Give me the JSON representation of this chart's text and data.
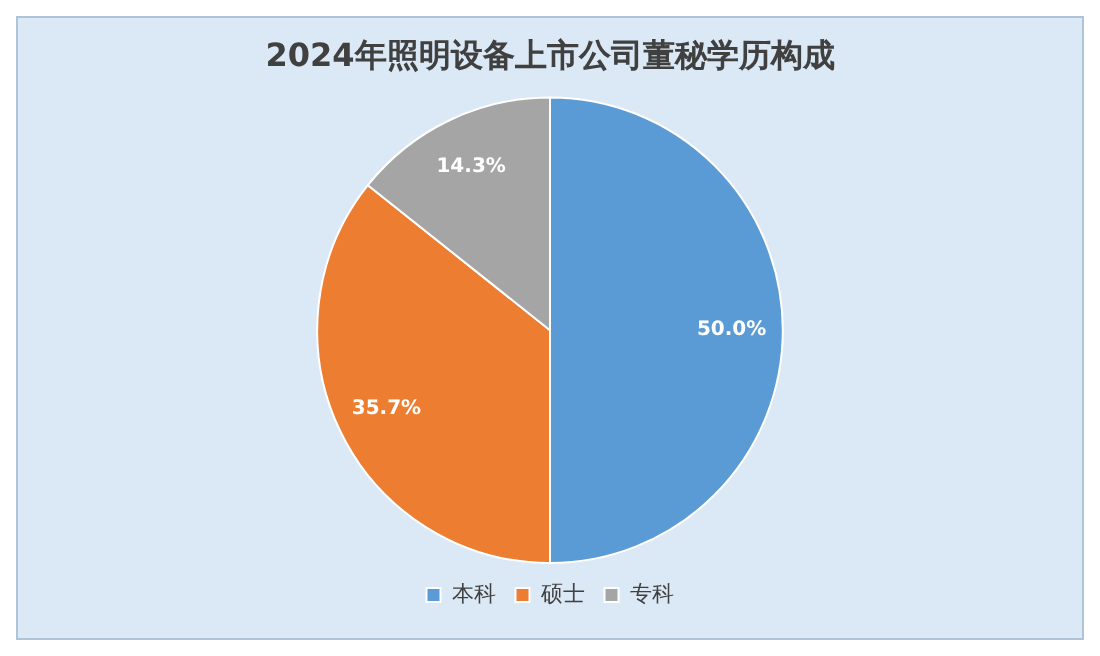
{
  "chart_data": {
    "type": "pie",
    "title": "2024年照明设备上市公司董秘学历构成",
    "categories": [
      "本科",
      "硕士",
      "专科"
    ],
    "values": [
      50.0,
      35.7,
      14.3
    ],
    "colors": [
      "#5b9bd5",
      "#ed7d31",
      "#a5a5a5"
    ],
    "value_labels": [
      "50.0%",
      "35.7%",
      "14.3%"
    ],
    "legend": "bottom"
  }
}
